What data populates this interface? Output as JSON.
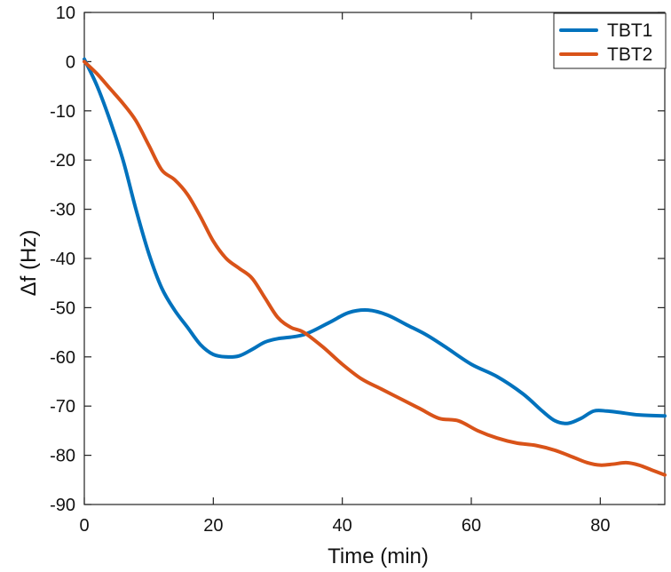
{
  "chart_data": {
    "type": "line",
    "title": "",
    "xlabel": "Time (min)",
    "ylabel": "Δf (Hz)",
    "xlim": [
      0,
      90
    ],
    "ylim": [
      -90,
      10
    ],
    "x_ticks": [
      0,
      20,
      40,
      60,
      80
    ],
    "y_ticks": [
      10,
      0,
      -10,
      -20,
      -30,
      -40,
      -50,
      -60,
      -70,
      -80,
      -90
    ],
    "grid": false,
    "legend_position": "top-right",
    "series": [
      {
        "name": "TBT1",
        "color": "#0072BD",
        "x": [
          0,
          2,
          4,
          6,
          8,
          10,
          12,
          14,
          16,
          18,
          20,
          22,
          24,
          26,
          28,
          30,
          34,
          38,
          41,
          44,
          47,
          50,
          53,
          56,
          60,
          64,
          68,
          71,
          73,
          75,
          77,
          79,
          81,
          83,
          86,
          90
        ],
        "y": [
          0.5,
          -5,
          -12,
          -20,
          -30,
          -39,
          -46,
          -50.5,
          -54,
          -57.5,
          -59.5,
          -60,
          -59.8,
          -58.5,
          -57,
          -56.3,
          -55.5,
          -53,
          -51,
          -50.5,
          -51.5,
          -53.5,
          -55.5,
          -58,
          -61.5,
          -64,
          -67.5,
          -71,
          -73,
          -73.5,
          -72.5,
          -71,
          -71,
          -71.3,
          -71.8,
          -72
        ]
      },
      {
        "name": "TBT2",
        "color": "#D95319",
        "x": [
          0,
          2,
          4,
          6,
          8,
          10,
          12,
          14,
          16,
          18,
          20,
          22,
          24,
          26,
          28,
          30,
          32,
          34,
          37,
          40,
          43,
          46,
          49,
          52,
          55,
          58,
          61,
          64,
          67,
          70,
          73,
          76,
          78,
          80,
          82,
          84,
          86,
          88,
          90
        ],
        "y": [
          0,
          -2.5,
          -5.5,
          -8.5,
          -12,
          -17,
          -22,
          -24,
          -27,
          -31.5,
          -36.5,
          -40,
          -42,
          -44,
          -48,
          -52,
          -54,
          -55,
          -58,
          -61.5,
          -64.5,
          -66.5,
          -68.5,
          -70.5,
          -72.5,
          -73,
          -75,
          -76.5,
          -77.5,
          -78,
          -79,
          -80.5,
          -81.5,
          -82,
          -81.8,
          -81.5,
          -82,
          -83,
          -84
        ]
      }
    ]
  }
}
